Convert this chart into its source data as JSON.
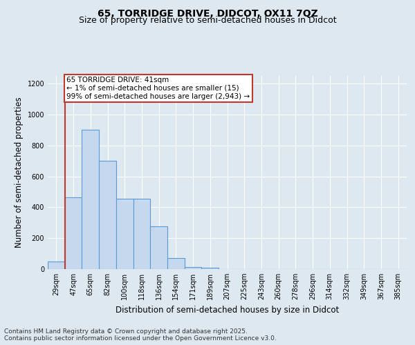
{
  "title_line1": "65, TORRIDGE DRIVE, DIDCOT, OX11 7QZ",
  "title_line2": "Size of property relative to semi-detached houses in Didcot",
  "xlabel": "Distribution of semi-detached houses by size in Didcot",
  "ylabel": "Number of semi-detached properties",
  "categories": [
    "29sqm",
    "47sqm",
    "65sqm",
    "82sqm",
    "100sqm",
    "118sqm",
    "136sqm",
    "154sqm",
    "171sqm",
    "189sqm",
    "207sqm",
    "225sqm",
    "243sqm",
    "260sqm",
    "278sqm",
    "296sqm",
    "314sqm",
    "332sqm",
    "349sqm",
    "367sqm",
    "385sqm"
  ],
  "values": [
    50,
    465,
    900,
    700,
    455,
    455,
    275,
    70,
    15,
    7,
    0,
    0,
    0,
    0,
    0,
    0,
    0,
    0,
    0,
    0,
    0
  ],
  "bar_color": "#c5d8ee",
  "bar_edge_color": "#5b9bd5",
  "vline_color": "#c0392b",
  "vline_x_index": 0.5,
  "annotation_text": "65 TORRIDGE DRIVE: 41sqm\n← 1% of semi-detached houses are smaller (15)\n99% of semi-detached houses are larger (2,943) →",
  "annotation_box_facecolor": "#ffffff",
  "annotation_box_edgecolor": "#c0392b",
  "ylim": [
    0,
    1250
  ],
  "yticks": [
    0,
    200,
    400,
    600,
    800,
    1000,
    1200
  ],
  "footer_line1": "Contains HM Land Registry data © Crown copyright and database right 2025.",
  "footer_line2": "Contains public sector information licensed under the Open Government Licence v3.0.",
  "bg_color": "#dde8f0",
  "plot_bg_color": "#dde8f0",
  "grid_color": "#ffffff",
  "title_fontsize": 10,
  "subtitle_fontsize": 9,
  "axis_label_fontsize": 8.5,
  "tick_fontsize": 7,
  "footer_fontsize": 6.5,
  "annotation_fontsize": 7.5
}
